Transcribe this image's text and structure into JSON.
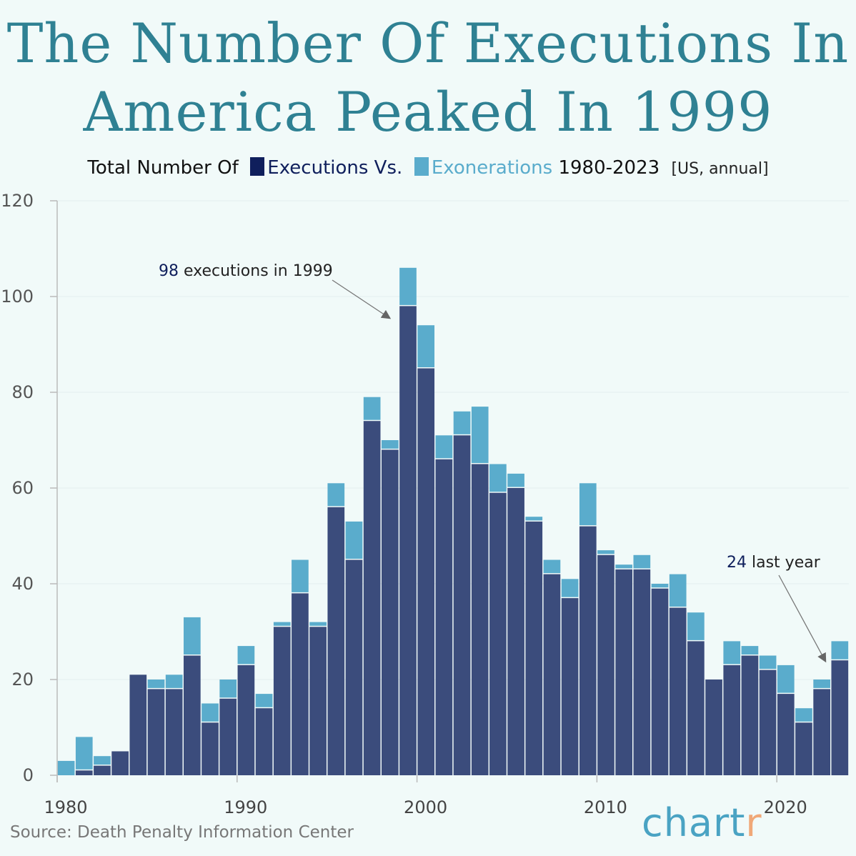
{
  "title_line1": "The Number Of Executions In",
  "title_line2": "America Peaked In 1999",
  "subtitle": {
    "prefix": "Total Number Of",
    "series1": "Executions Vs.",
    "series2": "Exonerations",
    "range": "1980-2023",
    "unit": "[US, annual]"
  },
  "source": "Source: Death Penalty Information Center",
  "logo": {
    "main": "chart",
    "accent": "r"
  },
  "colors": {
    "executions": "#3b4c7c",
    "exonerations": "#5aaccc",
    "title": "#2f8193",
    "legend_executions": "#0f1f5c"
  },
  "chart_data": {
    "type": "bar",
    "stacked": true,
    "x": [
      1980,
      1981,
      1982,
      1983,
      1984,
      1985,
      1986,
      1987,
      1988,
      1989,
      1990,
      1991,
      1992,
      1993,
      1994,
      1995,
      1996,
      1997,
      1998,
      1999,
      2000,
      2001,
      2002,
      2003,
      2004,
      2005,
      2006,
      2007,
      2008,
      2009,
      2010,
      2011,
      2012,
      2013,
      2014,
      2015,
      2016,
      2017,
      2018,
      2019,
      2020,
      2021,
      2022,
      2023
    ],
    "series": [
      {
        "name": "Executions",
        "values": [
          0,
          1,
          2,
          5,
          21,
          18,
          18,
          25,
          11,
          16,
          23,
          14,
          31,
          38,
          31,
          56,
          45,
          74,
          68,
          98,
          85,
          66,
          71,
          65,
          59,
          60,
          53,
          42,
          37,
          52,
          46,
          43,
          43,
          39,
          35,
          28,
          20,
          23,
          25,
          22,
          17,
          11,
          18,
          24
        ]
      },
      {
        "name": "Exonerations",
        "values": [
          3,
          7,
          2,
          0,
          0,
          2,
          3,
          8,
          4,
          4,
          4,
          3,
          1,
          7,
          1,
          5,
          8,
          5,
          2,
          8,
          9,
          5,
          5,
          12,
          6,
          3,
          1,
          3,
          4,
          9,
          1,
          1,
          3,
          1,
          7,
          6,
          0,
          5,
          2,
          3,
          6,
          3,
          2,
          4
        ]
      }
    ],
    "ylim": [
      0,
      120
    ],
    "yticks": [
      "0",
      "20",
      "40",
      "60",
      "80",
      "100",
      "120"
    ],
    "xticks": [
      "1980",
      "1990",
      "2000",
      "2010",
      "2020"
    ],
    "grid": true,
    "annotations": [
      {
        "value": "98",
        "text": "executions in 1999",
        "year": 1999
      },
      {
        "value": "24",
        "text": "last year",
        "year": 2023
      }
    ]
  }
}
